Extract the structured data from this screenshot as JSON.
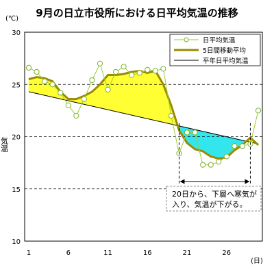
{
  "chart_data": {
    "type": "line",
    "title": "9月の日立市役所における日平均気温の推移",
    "yunit": "(℃)",
    "ylabel": "気温",
    "xunit": "(日)",
    "ylim": [
      10,
      30
    ],
    "xlim": [
      1,
      30
    ],
    "yticks": [
      10,
      15,
      20,
      25,
      30
    ],
    "xticks": [
      1,
      6,
      11,
      16,
      21,
      26
    ],
    "grid": "dashed horizontal",
    "legend_position": "top-right",
    "series": [
      {
        "name": "日平均気温",
        "color": "#9acd32",
        "x": [
          1,
          2,
          3,
          4,
          5,
          6,
          7,
          8,
          9,
          10,
          11,
          12,
          13,
          14,
          15,
          16,
          17,
          18,
          19,
          20,
          21,
          22,
          23,
          24,
          25,
          26,
          27,
          28,
          29,
          30
        ],
        "values": [
          26.6,
          26.2,
          25.3,
          25.0,
          24.2,
          23.0,
          22.0,
          23.6,
          25.4,
          27.0,
          24.5,
          26.2,
          26.7,
          25.9,
          26.1,
          26.4,
          26.3,
          26.5,
          22.0,
          18.4,
          20.4,
          20.4,
          17.3,
          17.3,
          17.6,
          18.1,
          19.1,
          19.1,
          19.3,
          22.5
        ]
      },
      {
        "name": "5日間移動平均",
        "color": "#9a8a00",
        "x": [
          1,
          2,
          3,
          4,
          5,
          6,
          7,
          8,
          9,
          10,
          11,
          12,
          13,
          14,
          15,
          16,
          17,
          18,
          19,
          20,
          21,
          22,
          23,
          24,
          25,
          26,
          27,
          28,
          29,
          30
        ],
        "values": [
          25.5,
          25.7,
          25.6,
          25.3,
          24.3,
          23.6,
          23.6,
          23.9,
          24.3,
          25.0,
          25.9,
          25.9,
          26.0,
          26.2,
          26.3,
          26.1,
          26.3,
          25.0,
          23.0,
          20.6,
          19.4,
          18.8,
          18.6,
          18.1,
          17.9,
          18.0,
          18.7,
          19.2,
          19.9,
          19.2
        ]
      },
      {
        "name": "平年日平均気温",
        "color": "#000000",
        "x": [
          1,
          30
        ],
        "values": [
          24.3,
          19.3
        ]
      }
    ],
    "annotation": {
      "lines": [
        "20日から、下層へ寒気が",
        "入り、気温が下がる。"
      ],
      "from_day": 20,
      "to_day": 29
    }
  }
}
